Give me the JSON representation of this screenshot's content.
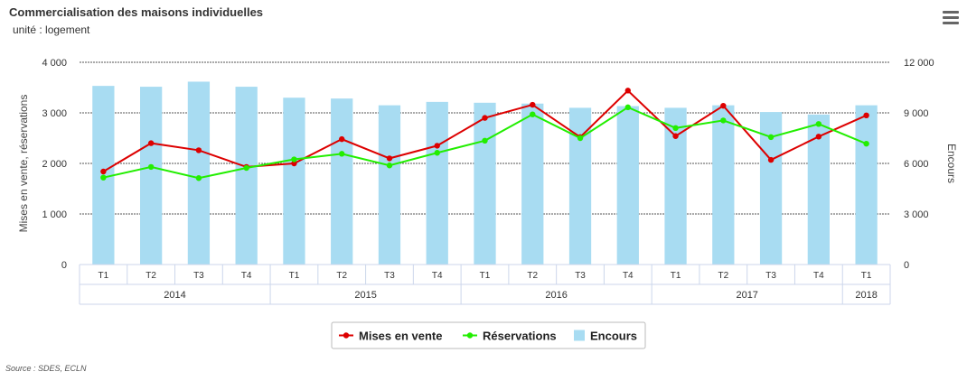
{
  "title": "Commercialisation des maisons individuelles",
  "subtitle": "unité : logement",
  "source": "Source : SDES, ECLN",
  "menu_icon": "hamburger-menu-icon",
  "colors": {
    "mises": "#dd0000",
    "reservations": "#22ee00",
    "encours": "#a8dcf2",
    "grid": "#555555"
  },
  "chart_data": {
    "type": "bar",
    "quarters": [
      "T1",
      "T2",
      "T3",
      "T4",
      "T1",
      "T2",
      "T3",
      "T4",
      "T1",
      "T2",
      "T3",
      "T4",
      "T1",
      "T2",
      "T3",
      "T4",
      "T1"
    ],
    "years": [
      {
        "label": "2014",
        "count": 4
      },
      {
        "label": "2015",
        "count": 4
      },
      {
        "label": "2016",
        "count": 4
      },
      {
        "label": "2017",
        "count": 4
      },
      {
        "label": "2018",
        "count": 1
      }
    ],
    "ylabel_left": "Mises en vente, réservations",
    "ylabel_right": "Encours",
    "ylim_left": [
      0,
      4000
    ],
    "ylim_right": [
      0,
      12000
    ],
    "yticks_left": [
      "0",
      "1 000",
      "2 000",
      "3 000",
      "4 000"
    ],
    "yticks_right": [
      "0",
      "3 000",
      "6 000",
      "9 000",
      "12 000"
    ],
    "grid": true,
    "legend_position": "bottom-center",
    "series": [
      {
        "name": "Mises en vente",
        "type": "line",
        "axis": "left",
        "values": [
          1840,
          2400,
          2260,
          1930,
          2000,
          2480,
          2100,
          2350,
          2900,
          3160,
          2520,
          3440,
          2540,
          3140,
          2070,
          2530,
          2950
        ]
      },
      {
        "name": "Réservations",
        "type": "line",
        "axis": "left",
        "values": [
          1720,
          1930,
          1710,
          1910,
          2080,
          2190,
          1960,
          2210,
          2450,
          2970,
          2500,
          3110,
          2700,
          2850,
          2520,
          2780,
          2390
        ]
      },
      {
        "name": "Encours",
        "type": "column",
        "axis": "right",
        "values": [
          10600,
          10550,
          10850,
          10550,
          9900,
          9850,
          9450,
          9650,
          9600,
          9550,
          9300,
          9400,
          9300,
          9450,
          9050,
          8900,
          9450
        ]
      }
    ]
  }
}
